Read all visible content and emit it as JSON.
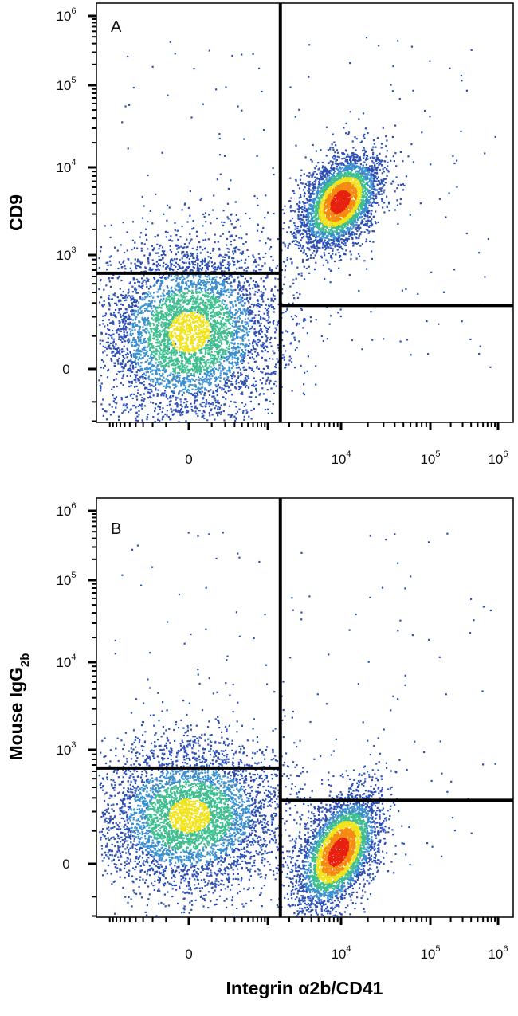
{
  "chart_data": [
    {
      "type": "scatter",
      "panel": "A",
      "ylabel": "CD9",
      "xlabel": "",
      "x_ticks": [
        {
          "label": "0",
          "exp": ""
        },
        {
          "label": "10",
          "exp": "4"
        },
        {
          "label": "10",
          "exp": "5"
        },
        {
          "label": "10",
          "exp": "6"
        }
      ],
      "y_ticks": [
        {
          "label": "0",
          "exp": ""
        },
        {
          "label": "10",
          "exp": "3"
        },
        {
          "label": "10",
          "exp": "4"
        },
        {
          "label": "10",
          "exp": "5"
        },
        {
          "label": "10",
          "exp": "6"
        }
      ],
      "quadrant_gate": {
        "vertical_x": 1500,
        "left_horizontal_y": 650,
        "right_horizontal_y": 280
      },
      "populations": [
        {
          "x_center": 0,
          "y_center": 120,
          "x_spread": 0.55,
          "y_spread": 0.55,
          "count": 5200
        },
        {
          "x_center": 9500,
          "y_center": 4200,
          "x_spread": 0.22,
          "y_spread": 0.28,
          "count": 3600
        }
      ]
    },
    {
      "type": "scatter",
      "panel": "B",
      "ylabel": "Mouse IgG",
      "ylabel_sub": "2b",
      "xlabel": "Integrin α2b/CD41",
      "x_ticks": [
        {
          "label": "0",
          "exp": ""
        },
        {
          "label": "10",
          "exp": "4"
        },
        {
          "label": "10",
          "exp": "5"
        },
        {
          "label": "10",
          "exp": "6"
        }
      ],
      "y_ticks": [
        {
          "label": "0",
          "exp": ""
        },
        {
          "label": "10",
          "exp": "3"
        },
        {
          "label": "10",
          "exp": "4"
        },
        {
          "label": "10",
          "exp": "5"
        },
        {
          "label": "10",
          "exp": "6"
        }
      ],
      "quadrant_gate": {
        "vertical_x": 1500,
        "left_horizontal_y": 650,
        "right_horizontal_y": 280
      },
      "populations": [
        {
          "x_center": 0,
          "y_center": 180,
          "x_spread": 0.55,
          "y_spread": 0.45,
          "count": 4600
        },
        {
          "x_center": 9000,
          "y_center": 30,
          "x_spread": 0.22,
          "y_spread": 0.35,
          "count": 3800
        }
      ]
    }
  ],
  "colors": {
    "low": "#2b4fb5",
    "mid": "#3fbf8f",
    "high_mid": "#f2e318",
    "high": "#e8200f",
    "gate": "#000000"
  }
}
